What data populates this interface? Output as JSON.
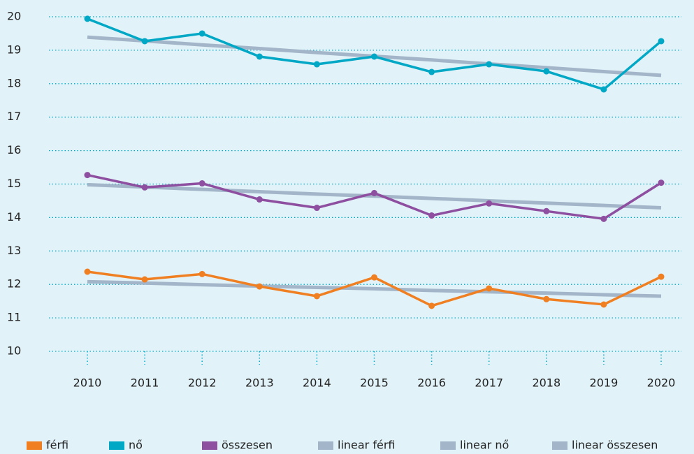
{
  "chart_data": {
    "type": "line",
    "categories": [
      "2010",
      "2011",
      "2012",
      "2013",
      "2014",
      "2015",
      "2016",
      "2017",
      "2018",
      "2019",
      "2020"
    ],
    "series": [
      {
        "name": "férfi",
        "color": "#f07f22",
        "values": [
          12.38,
          12.15,
          12.31,
          11.94,
          11.65,
          12.21,
          11.36,
          11.88,
          11.56,
          11.4,
          12.23
        ]
      },
      {
        "name": "nő",
        "color": "#00a8c6",
        "values": [
          19.94,
          19.27,
          19.5,
          18.81,
          18.58,
          18.81,
          18.35,
          18.58,
          18.37,
          17.83,
          19.27
        ]
      },
      {
        "name": "összesen",
        "color": "#8e4fa0",
        "values": [
          15.27,
          14.9,
          15.02,
          14.54,
          14.29,
          14.73,
          14.06,
          14.42,
          14.19,
          13.96,
          15.04
        ]
      },
      {
        "name": "linear férfi",
        "color": "#a3b5c8",
        "values": [
          12.08,
          12.04,
          11.99,
          11.95,
          11.91,
          11.87,
          11.82,
          11.78,
          11.74,
          11.69,
          11.65
        ]
      },
      {
        "name": "linear nő",
        "color": "#a3b5c8",
        "values": [
          19.39,
          19.28,
          19.16,
          19.05,
          18.93,
          18.82,
          18.71,
          18.59,
          18.48,
          18.36,
          18.25
        ]
      },
      {
        "name": "linear összesen",
        "color": "#a3b5c8",
        "values": [
          14.98,
          14.91,
          14.84,
          14.77,
          14.7,
          14.64,
          14.57,
          14.5,
          14.43,
          14.36,
          14.29
        ]
      }
    ],
    "ylim": [
      10,
      20
    ],
    "yticks": [
      10,
      11,
      12,
      13,
      14,
      15,
      16,
      17,
      18,
      19,
      20
    ],
    "grid": true,
    "legend": "bottom"
  }
}
